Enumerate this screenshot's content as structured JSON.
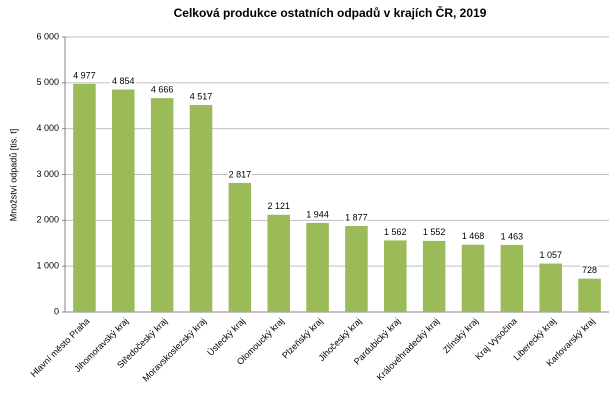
{
  "chart_data": {
    "type": "bar",
    "title": "Celková produkce ostatních odpadů v krajích ČR, 2019",
    "y_label": "Množství odpadů [tis. t]",
    "categories": [
      "Hlavní město Praha",
      "Jihomoravský kraj",
      "Středočeský kraj",
      "Moravskoslezský kraj",
      "Ústecký kraj",
      "Olomoucký kraj",
      "Plzeňský kraj",
      "Jihočeský kraj",
      "Pardubický kraj",
      "Královéhradecký kraj",
      "Zlínský kraj",
      "Kraj Vysočina",
      "Liberecký kraj",
      "Karlovarský kraj"
    ],
    "values": [
      4977,
      4854,
      4666,
      4517,
      2817,
      2121,
      1944,
      1877,
      1562,
      1552,
      1468,
      1463,
      1057,
      728
    ],
    "value_labels": [
      "4 977",
      "4 854",
      "4 666",
      "4 517",
      "2 817",
      "2 121",
      "1 944",
      "1 877",
      "1 562",
      "1 552",
      "1 468",
      "1 463",
      "1 057",
      "728"
    ],
    "color": "#9bbb59",
    "ylim": [
      0,
      6000
    ],
    "yticks": [
      0,
      {
        "value": 1000,
        "label": "1 000"
      },
      {
        "value": 2000,
        "label": "2 000"
      },
      {
        "value": 3000,
        "label": "3 000"
      },
      {
        "value": 4000,
        "label": "4 000"
      },
      {
        "value": 5000,
        "label": "5 000"
      },
      {
        "value": 6000,
        "label": "6 000"
      }
    ],
    "grid": true
  }
}
